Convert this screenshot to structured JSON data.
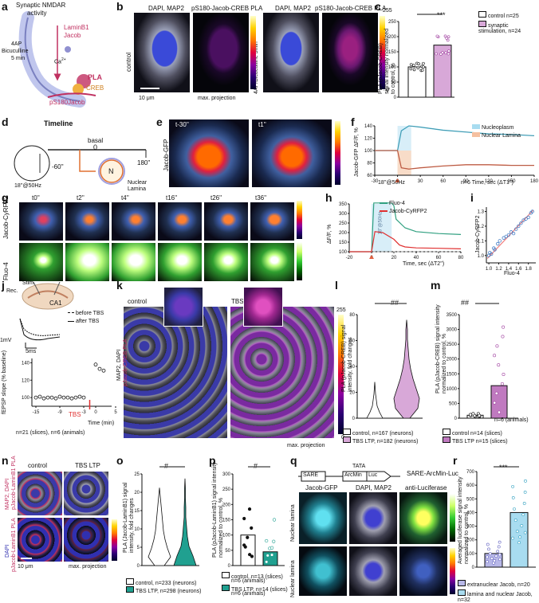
{
  "panels": {
    "a": {
      "letter": "a",
      "text": {
        "synaptic": "Synaptic NMDAR",
        "activity": "activity",
        "laminb1": "LaminB1",
        "jacob": "Jacob",
        "ca": "Ca",
        "ca_sup": "2+",
        "fourap": "4AP",
        "bicuculline": "Bicuculline",
        "fivemin": "5 min",
        "pla": "PLA",
        "creb": "CREB",
        "ps180": "pS180Jacob"
      }
    },
    "b": {
      "letter": "b",
      "headers": [
        "DAPI, MAP2",
        "pS180-Jacob-CREB PLA",
        "DAPI, MAP2",
        "pS180-Jacob-CREB PLA"
      ],
      "side_left": "control",
      "side_right": "4AP/Bicuculline 5min",
      "scale": "10 μm",
      "maxproj": "max. projection",
      "cmax": "255",
      "cmin": "0"
    },
    "c": {
      "letter": "c",
      "sig": "***",
      "ylabel": "PLA (pJacob-CREB)\nsignal intensity normalized\nto control, %",
      "yticks": [
        "0",
        "50",
        "100",
        "150",
        "200",
        "250"
      ],
      "legend": [
        "control n=25",
        "synaptic stimulation, n=24"
      ]
    },
    "d": {
      "letter": "d",
      "title": "Timeline",
      "basal": "basal",
      "zero": "0",
      "t_neg": "-60''",
      "t_end": "180''",
      "stim": "18''@50Hz",
      "n": "N",
      "nuclear": "Nuclear",
      "lamina": "Lamina"
    },
    "e": {
      "letter": "e",
      "side": "Jacob-GFP",
      "t1": "t-30''",
      "t2": "t1''"
    },
    "f": {
      "letter": "f",
      "legend": [
        "Nucleoplasm",
        "Nuclear Lamina"
      ],
      "ylabel": "Jacob-GFP ΔF/F, %",
      "yticks": [
        "60",
        "80",
        "100",
        "120",
        "140"
      ],
      "xticks": [
        "-30",
        "0",
        "30",
        "60",
        "90",
        "120",
        "150",
        "180"
      ],
      "xlabel": "n=6  Time, sec (ΔT1'')",
      "stim": "18''@50Hz"
    },
    "g": {
      "letter": "g",
      "times": [
        "t0''",
        "t2''",
        "t4''",
        "t16''",
        "t26''",
        "t36''"
      ],
      "rows": [
        "Jacob-CyRFP2",
        "Fluo-4"
      ],
      "cmax": "255",
      "cmin": "0"
    },
    "h": {
      "letter": "h",
      "legend": [
        "Fluo-4",
        "Jacob-CyRFP2"
      ],
      "ylabel": "ΔF/F, %",
      "yticks": [
        "100",
        "150",
        "200",
        "250",
        "300",
        "350"
      ],
      "xticks": [
        "-20",
        "0",
        "20",
        "40",
        "60",
        "80"
      ],
      "xlabel": "Time, sec (ΔT2'')",
      "stim": "18''@50Hz"
    },
    "i": {
      "letter": "i",
      "ylabel": "Jacob-CyRFP2",
      "xlabel": "Fluo-4",
      "yticks": [
        "1.0",
        "1.1",
        "1.2",
        "1.3"
      ],
      "xticks": [
        "1.0",
        "1.2",
        "1.4",
        "1.6",
        "1.8"
      ]
    },
    "j": {
      "letter": "j",
      "rec": "Rec.",
      "stim": "Stim.",
      "ca1": "CA1",
      "legend": [
        "before TBS",
        "after TBS"
      ],
      "scale_mv": "1mV",
      "scale_ms": "5ms",
      "ylabel": "fEPSP slope (% baseline)",
      "yticks": [
        "100",
        "120",
        "140"
      ],
      "xticks": [
        "-15",
        "-9",
        "-3",
        "0",
        "5"
      ],
      "xlabel": "Time (min)",
      "tbs": "TBS",
      "n": "n=21 (slices), n=6 (animals)"
    },
    "k": {
      "letter": "k",
      "cond": [
        "control",
        "TBS LTP"
      ],
      "side": [
        "MAP2, DAPI",
        "pJacob-CREB PLA"
      ],
      "maxproj": "max. projection",
      "cmax": "255",
      "cmin": "0"
    },
    "l": {
      "letter": "l",
      "sig": "##",
      "ylabel": "PLA (pJacob-CREB) signal\nintensity, fold changes",
      "yticks": [
        "0",
        "20",
        "40",
        "60",
        "80"
      ],
      "legend": [
        "control, n=167 (neurons)",
        "TBS LTP, n=182 (neurons)"
      ]
    },
    "m": {
      "letter": "m",
      "sig": "##",
      "ylabel": "PLA (pJacob-CREB) signal intensity\nnormalized to control, %",
      "yticks": [
        "0",
        "500",
        "1000",
        "1500",
        "2000",
        "2500",
        "3000",
        "3500"
      ],
      "legend": [
        "control",
        "TBS LTP"
      ],
      "legend_n": [
        "n=14 (slices)",
        "n=15 (slices)"
      ],
      "n": "n=6 (animals)"
    },
    "n": {
      "letter": "n",
      "cond": [
        "control",
        "TBS LTP"
      ],
      "side_top": [
        "MAP2, DAPI",
        "pJacob-LaminB1 PLA"
      ],
      "side_bot": [
        "DAPI",
        "pJacob-LaminB1 PLA"
      ],
      "scale": "10 μm",
      "maxproj": "max. projection",
      "cmax": "255",
      "cmin": "0"
    },
    "o": {
      "letter": "o",
      "sig": "#",
      "ylabel": "PLA (Jacob-LaminB1) signal\nintensity, fold changes",
      "yticks": [
        "0",
        "5",
        "10",
        "15",
        "20",
        "25"
      ],
      "legend": [
        "control, n=233 (neurons)",
        "TBS LTP, n=298 (neurons)"
      ]
    },
    "p": {
      "letter": "p",
      "sig": "#",
      "ylabel": "PLA (pJacob-LaminB1) signal intensity\nnormalized to control, %",
      "yticks": [
        "0",
        "50",
        "100",
        "150",
        "200",
        "250",
        "300"
      ],
      "legend": [
        "control, n=13 (slices)",
        "n=6 (animals)",
        "TBS LTP, n=14 (slices)",
        "n=6 (animals)"
      ]
    },
    "q": {
      "letter": "q",
      "construct": [
        "SARE",
        "TATA",
        "ArcMin",
        "Luc"
      ],
      "construct_label": "SARE-ArcMin-Luc",
      "headers": [
        "Jacob-GFP",
        "DAPI, MAP2",
        "anti-Luciferase"
      ],
      "side": [
        "Nuclear lamina",
        "Nuclear lamina"
      ],
      "cmax": "255",
      "cmin": "0"
    },
    "r": {
      "letter": "r",
      "sig": "***",
      "ylabel": "Averaged luciferase signal intensity\nnormalized to control, %",
      "yticks": [
        "0",
        "100",
        "200",
        "300",
        "400",
        "500",
        "600",
        "700"
      ],
      "legend": [
        "extranuclear Jacob, n=20",
        "lamina and nuclear Jacob, n=32"
      ]
    }
  },
  "colors": {
    "control": "#ffffff",
    "stim": "#d8a8d8",
    "tbs": "#c07ac0",
    "teal": "#20a090",
    "lightblue": "#a8dcf0",
    "coral": "#f08080",
    "lav": "#b8b8e8",
    "red": "#e03030",
    "green": "#30a080",
    "cyan": "#40c8d8"
  },
  "chart_data": [
    {
      "type": "bar",
      "panel": "c",
      "categories": [
        "control",
        "synaptic stimulation"
      ],
      "values": [
        100,
        172
      ],
      "ylim": [
        0,
        250
      ]
    },
    {
      "type": "line",
      "panel": "f",
      "series": [
        {
          "name": "Nucleoplasm",
          "x": [
            -30,
            -10,
            0,
            5,
            15,
            30,
            60,
            90,
            120,
            150,
            180
          ],
          "y": [
            100,
            100,
            100,
            132,
            140,
            138,
            133,
            130,
            127,
            126,
            124
          ]
        },
        {
          "name": "Nuclear Lamina",
          "x": [
            -30,
            -10,
            0,
            5,
            15,
            30,
            60,
            90,
            120,
            150,
            180
          ],
          "y": [
            100,
            100,
            100,
            72,
            70,
            72,
            75,
            77,
            77,
            76,
            76
          ]
        }
      ],
      "xlim": [
        -30,
        180
      ],
      "ylim": [
        60,
        140
      ]
    },
    {
      "type": "line",
      "panel": "h",
      "series": [
        {
          "name": "Fluo-4",
          "x": [
            -20,
            -5,
            0,
            2,
            18,
            20,
            22,
            30,
            40,
            60,
            80
          ],
          "y": [
            100,
            100,
            100,
            355,
            355,
            340,
            270,
            225,
            205,
            195,
            190
          ]
        },
        {
          "name": "Jacob-CyRFP2",
          "x": [
            -20,
            -5,
            0,
            3,
            10,
            20,
            25,
            30,
            40,
            60,
            80
          ],
          "y": [
            100,
            100,
            100,
            205,
            200,
            165,
            135,
            125,
            120,
            118,
            115
          ]
        }
      ],
      "xlim": [
        -20,
        80
      ],
      "ylim": [
        100,
        350
      ]
    },
    {
      "type": "scatter",
      "panel": "i",
      "x": [
        1.0,
        1.02,
        1.05,
        1.1,
        1.12,
        1.18,
        1.22,
        1.3,
        1.35,
        1.4,
        1.45,
        1.5,
        1.55,
        1.6,
        1.65,
        1.7,
        1.75,
        1.8,
        1.85,
        1.88
      ],
      "y": [
        1.0,
        1.02,
        1.01,
        1.05,
        1.04,
        1.08,
        1.1,
        1.12,
        1.13,
        1.14,
        1.16,
        1.15,
        1.18,
        1.2,
        1.22,
        1.24,
        1.25,
        1.26,
        1.29,
        1.3
      ],
      "xlim": [
        0.95,
        1.95
      ],
      "ylim": [
        0.95,
        1.33
      ]
    },
    {
      "type": "scatter",
      "panel": "j",
      "x": [
        -15,
        -14,
        -13,
        -12,
        -11,
        -10,
        -9,
        -8,
        -7,
        -6,
        -5,
        -4,
        -3,
        0,
        1,
        2
      ],
      "y": [
        100,
        101,
        99,
        100,
        100,
        99,
        101,
        100,
        100,
        99,
        100,
        101,
        100,
        138,
        133,
        131
      ],
      "xlim": [
        -16,
        4
      ],
      "ylim": [
        90,
        145
      ]
    },
    {
      "type": "bar",
      "panel": "m",
      "categories": [
        "control",
        "TBS LTP"
      ],
      "values": [
        100,
        1100
      ],
      "ylim": [
        0,
        3500
      ]
    },
    {
      "type": "bar",
      "panel": "p",
      "categories": [
        "control",
        "TBS LTP"
      ],
      "values": [
        100,
        45
      ],
      "ylim": [
        0,
        300
      ]
    },
    {
      "type": "bar",
      "panel": "r",
      "categories": [
        "extranuclear Jacob",
        "lamina and nuclear Jacob"
      ],
      "values": [
        100,
        400
      ],
      "ylim": [
        0,
        700
      ]
    }
  ]
}
